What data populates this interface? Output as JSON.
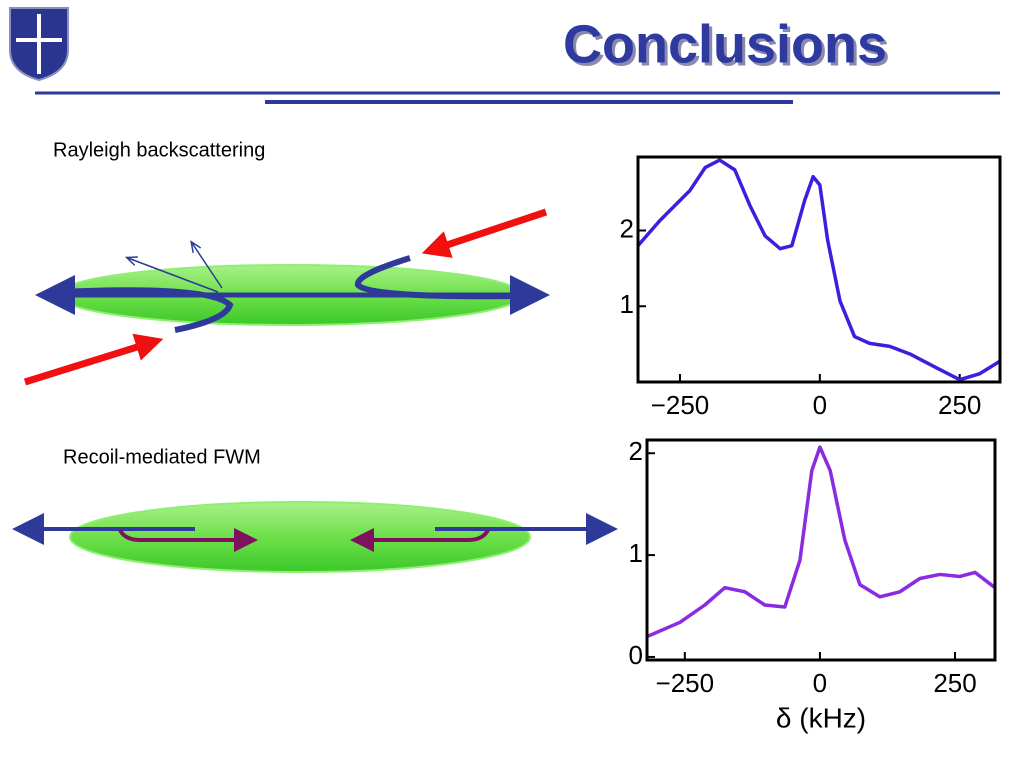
{
  "title": "Conclusions",
  "labels": [
    "Rayleigh backscattering",
    "Recoil-mediated FWM"
  ],
  "chart_data": [
    {
      "type": "line",
      "color": "#3a1fe0",
      "x": [
        -325,
        -286,
        -232,
        -205,
        -179,
        -152,
        -125,
        -98,
        -71,
        -50,
        -27,
        -12,
        0,
        14,
        36,
        62,
        89,
        125,
        161,
        205,
        250,
        286,
        321
      ],
      "values": [
        1.8,
        2.13,
        2.53,
        2.83,
        2.93,
        2.8,
        2.33,
        1.93,
        1.76,
        1.8,
        2.4,
        2.71,
        2.6,
        1.87,
        1.07,
        0.6,
        0.51,
        0.47,
        0.37,
        0.2,
        0.03,
        0.11,
        0.27
      ],
      "xlim": [
        -325,
        322
      ],
      "ylim": [
        0,
        2.97
      ],
      "xticks": [
        {
          "value": -250,
          "label": "−250"
        },
        0,
        250
      ],
      "yticks": [
        1,
        2
      ]
    },
    {
      "type": "line",
      "color": "#8a2be2",
      "x": [
        -320,
        -259,
        -213,
        -176,
        -139,
        -102,
        -65,
        -37,
        -15,
        0,
        19,
        46,
        74,
        111,
        148,
        185,
        222,
        259,
        287,
        324
      ],
      "values": [
        0.2,
        0.34,
        0.51,
        0.68,
        0.64,
        0.51,
        0.49,
        0.95,
        1.83,
        2.06,
        1.83,
        1.15,
        0.71,
        0.59,
        0.64,
        0.77,
        0.81,
        0.79,
        0.83,
        0.68
      ],
      "xlim": [
        -320,
        324
      ],
      "ylim": [
        -0.03,
        2.13
      ],
      "xticks": [
        {
          "value": -250,
          "label": "−250"
        },
        0,
        250
      ],
      "yticks": [
        0,
        1,
        2
      ],
      "x_label": "δ (kHz)"
    }
  ]
}
